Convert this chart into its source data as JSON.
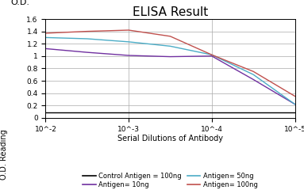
{
  "title": "ELISA Result",
  "xlabel": "Serial Dilutions of Antibody",
  "ylabel_top": "O.D.",
  "ylabel_side": "O.D. Reading",
  "ylim": [
    0,
    1.6
  ],
  "yticks": [
    0,
    0.2,
    0.4,
    0.6,
    0.8,
    1.0,
    1.2,
    1.4,
    1.6
  ],
  "ytick_labels": [
    "0",
    "0.2",
    "0.4",
    "0.6",
    "0.8",
    "1",
    "1.2",
    "1.4",
    "1.6"
  ],
  "xtick_labels": [
    "10^-2",
    "10^-3",
    "10^-4",
    "10^-5"
  ],
  "xtick_positions": [
    -2,
    -3,
    -4,
    -5
  ],
  "lines": [
    {
      "label": "Control Antigen = 100ng",
      "color": "#000000",
      "x": [
        -2,
        -2.5,
        -3,
        -3.5,
        -4,
        -4.5,
        -5
      ],
      "y": [
        0.09,
        0.09,
        0.09,
        0.09,
        0.09,
        0.09,
        0.09
      ]
    },
    {
      "label": "Antigen= 10ng",
      "color": "#7030A0",
      "x": [
        -2,
        -2.5,
        -3,
        -3.5,
        -4,
        -4.5,
        -5
      ],
      "y": [
        1.12,
        1.06,
        1.01,
        0.99,
        1.0,
        0.62,
        0.22
      ]
    },
    {
      "label": "Antigen= 50ng",
      "color": "#4BACC6",
      "x": [
        -2,
        -2.5,
        -3,
        -3.5,
        -4,
        -4.5,
        -5
      ],
      "y": [
        1.3,
        1.28,
        1.23,
        1.16,
        1.02,
        0.7,
        0.22
      ]
    },
    {
      "label": "Antigen= 100ng",
      "color": "#C0504D",
      "x": [
        -2,
        -2.5,
        -3,
        -3.5,
        -4,
        -4.5,
        -5
      ],
      "y": [
        1.37,
        1.4,
        1.42,
        1.32,
        1.02,
        0.75,
        0.35
      ]
    }
  ],
  "title_fontsize": 11,
  "label_fontsize": 7,
  "tick_fontsize": 6.5,
  "legend_fontsize": 6,
  "od_label_fontsize": 8
}
